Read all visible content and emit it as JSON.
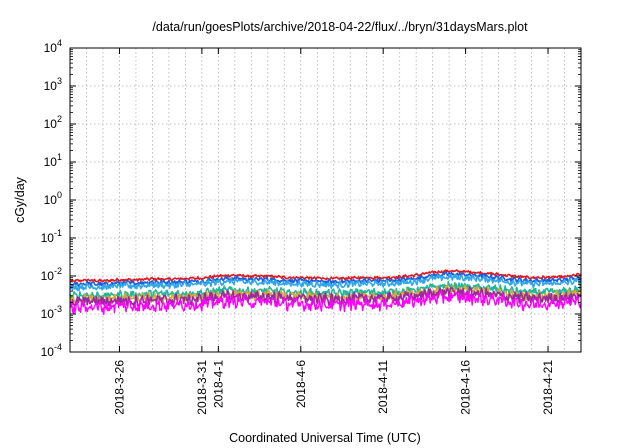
{
  "chart_data": {
    "type": "line",
    "title": "/data/run/goesPlots/archive/2018-04-22/flux/../bryn/31daysMars.plot",
    "xlabel": "Coordinated Universal Time (UTC)",
    "ylabel": "cGy/day",
    "yscale": "log",
    "ylim": [
      0.0001,
      10000
    ],
    "xlim": [
      "2018-03-23",
      "2018-04-23"
    ],
    "grid": true,
    "legend": "none",
    "y_ticks": [
      {
        "base": "10",
        "exp": "-4",
        "value": 0.0001
      },
      {
        "base": "10",
        "exp": "-3",
        "value": 0.001
      },
      {
        "base": "10",
        "exp": "-2",
        "value": 0.01
      },
      {
        "base": "10",
        "exp": "-1",
        "value": 0.1
      },
      {
        "base": "10",
        "exp": "0",
        "value": 1
      },
      {
        "base": "10",
        "exp": "1",
        "value": 10
      },
      {
        "base": "10",
        "exp": "2",
        "value": 100
      },
      {
        "base": "10",
        "exp": "3",
        "value": 1000
      },
      {
        "base": "10",
        "exp": "4",
        "value": 10000
      }
    ],
    "x_ticks": [
      {
        "label": "2018-3-26",
        "date": "2018-03-26"
      },
      {
        "label": "2018-3-31",
        "date": "2018-03-31"
      },
      {
        "label": "2018-4-1",
        "date": "2018-04-01"
      },
      {
        "label": "2018-4-6",
        "date": "2018-04-06"
      },
      {
        "label": "2018-4-11",
        "date": "2018-04-11"
      },
      {
        "label": "2018-4-16",
        "date": "2018-04-16"
      },
      {
        "label": "2018-4-21",
        "date": "2018-04-21"
      }
    ],
    "x": [
      "2018-03-23",
      "2018-03-24",
      "2018-03-25",
      "2018-03-26",
      "2018-03-27",
      "2018-03-28",
      "2018-03-29",
      "2018-03-30",
      "2018-03-31",
      "2018-04-01",
      "2018-04-02",
      "2018-04-03",
      "2018-04-04",
      "2018-04-05",
      "2018-04-06",
      "2018-04-07",
      "2018-04-08",
      "2018-04-09",
      "2018-04-10",
      "2018-04-11",
      "2018-04-12",
      "2018-04-13",
      "2018-04-14",
      "2018-04-15",
      "2018-04-16",
      "2018-04-17",
      "2018-04-18",
      "2018-04-19",
      "2018-04-20",
      "2018-04-21",
      "2018-04-22",
      "2018-04-23"
    ],
    "series": [
      {
        "color": "#e8161b",
        "values": [
          0.0072,
          0.0078,
          0.0074,
          0.008,
          0.0079,
          0.0084,
          0.0082,
          0.0086,
          0.0088,
          0.01,
          0.0105,
          0.0098,
          0.01,
          0.0092,
          0.009,
          0.0088,
          0.0085,
          0.0088,
          0.0092,
          0.009,
          0.0095,
          0.0105,
          0.0125,
          0.0135,
          0.013,
          0.012,
          0.011,
          0.0098,
          0.009,
          0.0092,
          0.0095,
          0.011
        ]
      },
      {
        "color": "#1a5fe0",
        "values": [
          0.0058,
          0.0064,
          0.006,
          0.0066,
          0.0065,
          0.007,
          0.0068,
          0.0071,
          0.0073,
          0.0083,
          0.0087,
          0.0081,
          0.0083,
          0.0076,
          0.0075,
          0.0073,
          0.007,
          0.0073,
          0.0076,
          0.0075,
          0.0079,
          0.0087,
          0.0104,
          0.0112,
          0.0108,
          0.01,
          0.0091,
          0.0081,
          0.0075,
          0.0076,
          0.0079,
          0.0092
        ]
      },
      {
        "color": "#2fa7e8",
        "values": [
          0.0048,
          0.0053,
          0.005,
          0.0055,
          0.0054,
          0.0058,
          0.0056,
          0.0059,
          0.0061,
          0.0069,
          0.0072,
          0.0067,
          0.0069,
          0.0063,
          0.0062,
          0.0061,
          0.0058,
          0.0061,
          0.0063,
          0.0062,
          0.0066,
          0.0072,
          0.0086,
          0.0093,
          0.009,
          0.0083,
          0.0076,
          0.0067,
          0.0062,
          0.0063,
          0.0066,
          0.0076
        ]
      },
      {
        "color": "#1fb89a",
        "values": [
          0.0029,
          0.0032,
          0.003,
          0.0033,
          0.0032,
          0.0035,
          0.0034,
          0.0035,
          0.0036,
          0.0041,
          0.0043,
          0.004,
          0.0041,
          0.0038,
          0.0037,
          0.0036,
          0.0035,
          0.0036,
          0.0038,
          0.0037,
          0.0039,
          0.0043,
          0.0051,
          0.0055,
          0.0053,
          0.0049,
          0.0045,
          0.004,
          0.0037,
          0.0038,
          0.0039,
          0.0045
        ]
      },
      {
        "color": "#d6a73a",
        "values": [
          0.0023,
          0.0025,
          0.0024,
          0.0026,
          0.0025,
          0.0027,
          0.0026,
          0.0028,
          0.0028,
          0.0032,
          0.0034,
          0.0031,
          0.0032,
          0.003,
          0.0029,
          0.0028,
          0.0027,
          0.0028,
          0.003,
          0.0029,
          0.0031,
          0.0034,
          0.004,
          0.0044,
          0.0042,
          0.0039,
          0.0035,
          0.0031,
          0.0029,
          0.003,
          0.0031,
          0.0035
        ]
      },
      {
        "color": "#9a2b9e",
        "values": [
          0.002,
          0.0022,
          0.0021,
          0.0023,
          0.0022,
          0.0024,
          0.0023,
          0.0024,
          0.0025,
          0.0028,
          0.003,
          0.0028,
          0.0028,
          0.0026,
          0.0026,
          0.0025,
          0.0024,
          0.0025,
          0.0026,
          0.0026,
          0.0027,
          0.003,
          0.0036,
          0.0038,
          0.0037,
          0.0034,
          0.0031,
          0.0028,
          0.0026,
          0.0026,
          0.0027,
          0.0031
        ]
      },
      {
        "color": "#ff00ff",
        "values": [
          0.0014,
          0.0016,
          0.0015,
          0.0017,
          0.0016,
          0.0017,
          0.0017,
          0.0018,
          0.0018,
          0.0021,
          0.0022,
          0.002,
          0.0021,
          0.0019,
          0.0018,
          0.0018,
          0.0017,
          0.0018,
          0.0019,
          0.0018,
          0.002,
          0.0022,
          0.0026,
          0.0028,
          0.0027,
          0.0025,
          0.0023,
          0.002,
          0.0018,
          0.0019,
          0.002,
          0.0022
        ]
      }
    ]
  }
}
